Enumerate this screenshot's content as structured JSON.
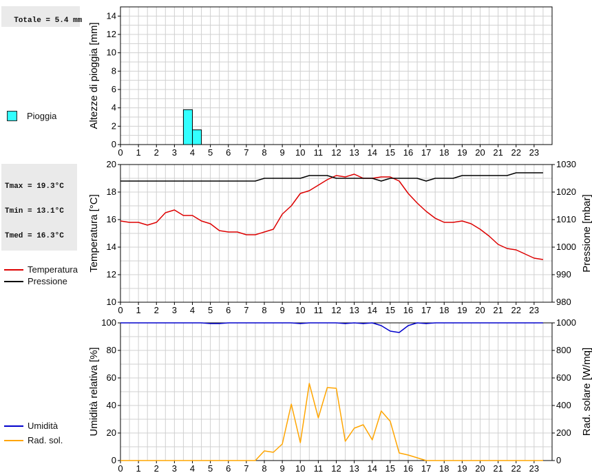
{
  "colors": {
    "rain": "#33ffff",
    "temperature": "#dd0000",
    "pressure": "#000000",
    "humidity": "#0000cc",
    "radiation": "#ffa500",
    "grid": "#d0d0d0"
  },
  "summary": {
    "total_rain": "Totale = 5.4 mm",
    "tmax": "Tmax = 19.3°C",
    "tmin": "Tmin = 13.1°C",
    "tmed": "Tmed = 16.3°C"
  },
  "legend": {
    "rain": "Pioggia",
    "temperature": "Temperatura",
    "pressure": "Pressione",
    "humidity": "Umidità",
    "radiation": "Rad. sol."
  },
  "chart_data": [
    {
      "type": "bar",
      "ylabel": "Altezze di pioggia [mm]",
      "xlim": [
        0,
        24
      ],
      "ylim": [
        0,
        15
      ],
      "yticks": [
        "0",
        "2",
        "4",
        "6",
        "8",
        "10",
        "12",
        "14"
      ],
      "xticks": [
        "0",
        "1",
        "2",
        "3",
        "4",
        "5",
        "6",
        "7",
        "8",
        "9",
        "10",
        "11",
        "12",
        "13",
        "14",
        "15",
        "16",
        "17",
        "18",
        "19",
        "20",
        "21",
        "22",
        "23"
      ],
      "bars": [
        {
          "start": 3.5,
          "end": 4.0,
          "value": 3.8
        },
        {
          "start": 4.0,
          "end": 4.5,
          "value": 1.6
        }
      ]
    },
    {
      "type": "line",
      "ylabel": "Temperatura [°C]",
      "ylabel_right": "Pressione [mbar]",
      "ylim": [
        10,
        20
      ],
      "ylim_right": [
        980,
        1030
      ],
      "yticks": [
        "10",
        "12",
        "14",
        "16",
        "18",
        "20"
      ],
      "yticks_right": [
        "980",
        "990",
        "1000",
        "1010",
        "1020",
        "1030"
      ],
      "xticks": [
        "0",
        "1",
        "2",
        "3",
        "4",
        "5",
        "6",
        "7",
        "8",
        "9",
        "10",
        "11",
        "12",
        "13",
        "14",
        "15",
        "16",
        "17",
        "18",
        "19",
        "20",
        "21",
        "22",
        "23"
      ],
      "series": [
        {
          "name": "Temperatura",
          "axis": "left",
          "x": [
            0,
            0.5,
            1,
            1.5,
            2,
            2.5,
            3,
            3.5,
            4,
            4.5,
            5,
            5.5,
            6,
            6.5,
            7,
            7.5,
            8,
            8.5,
            9,
            9.5,
            10,
            10.5,
            11,
            11.5,
            12,
            12.5,
            13,
            13.5,
            14,
            14.5,
            15,
            15.5,
            16,
            16.5,
            17,
            17.5,
            18,
            18.5,
            19,
            19.5,
            20,
            20.5,
            21,
            21.5,
            22,
            22.5,
            23,
            23.5
          ],
          "values": [
            15.9,
            15.8,
            15.8,
            15.6,
            15.8,
            16.5,
            16.7,
            16.3,
            16.3,
            15.9,
            15.7,
            15.2,
            15.1,
            15.1,
            14.9,
            14.9,
            15.1,
            15.3,
            16.4,
            17.0,
            17.9,
            18.1,
            18.5,
            18.9,
            19.2,
            19.1,
            19.3,
            19.0,
            19.0,
            19.1,
            19.1,
            18.8,
            17.9,
            17.2,
            16.6,
            16.1,
            15.8,
            15.8,
            15.9,
            15.7,
            15.3,
            14.8,
            14.2,
            13.9,
            13.8,
            13.5,
            13.2,
            13.1
          ]
        },
        {
          "name": "Pressione",
          "axis": "right",
          "x": [
            0,
            0.5,
            1,
            1.5,
            2,
            2.5,
            3,
            3.5,
            4,
            4.5,
            5,
            5.5,
            6,
            6.5,
            7,
            7.5,
            8,
            8.5,
            9,
            9.5,
            10,
            10.5,
            11,
            11.5,
            12,
            12.5,
            13,
            13.5,
            14,
            14.5,
            15,
            15.5,
            16,
            16.5,
            17,
            17.5,
            18,
            18.5,
            19,
            19.5,
            20,
            20.5,
            21,
            21.5,
            22,
            22.5,
            23,
            23.5
          ],
          "values": [
            1024,
            1024,
            1024,
            1024,
            1024,
            1024,
            1024,
            1024,
            1024,
            1024,
            1024,
            1024,
            1024,
            1024,
            1024,
            1024,
            1025,
            1025,
            1025,
            1025,
            1025,
            1026,
            1026,
            1026,
            1025,
            1025,
            1025,
            1025,
            1025,
            1024,
            1025,
            1025,
            1025,
            1025,
            1024,
            1025,
            1025,
            1025,
            1026,
            1026,
            1026,
            1026,
            1026,
            1026,
            1027,
            1027,
            1027,
            1027
          ]
        }
      ]
    },
    {
      "type": "line",
      "ylabel": "Umidità relativa [%]",
      "ylabel_right": "Rad. solare [W/mq]",
      "ylim": [
        0,
        100
      ],
      "ylim_right": [
        0,
        1000
      ],
      "yticks": [
        "0",
        "20",
        "40",
        "60",
        "80",
        "100"
      ],
      "yticks_right": [
        "0",
        "200",
        "400",
        "600",
        "800",
        "1000"
      ],
      "xticks": [
        "0",
        "1",
        "2",
        "3",
        "4",
        "5",
        "6",
        "7",
        "8",
        "9",
        "10",
        "11",
        "12",
        "13",
        "14",
        "15",
        "16",
        "17",
        "18",
        "19",
        "20",
        "21",
        "22",
        "23"
      ],
      "series": [
        {
          "name": "Umidità",
          "axis": "left",
          "x": [
            0,
            0.5,
            1,
            1.5,
            2,
            2.5,
            3,
            3.5,
            4,
            4.5,
            5,
            5.5,
            6,
            6.5,
            7,
            7.5,
            8,
            8.5,
            9,
            9.5,
            10,
            10.5,
            11,
            11.5,
            12,
            12.5,
            13,
            13.5,
            14,
            14.5,
            15,
            15.5,
            16,
            16.5,
            17,
            17.5,
            18,
            18.5,
            19,
            19.5,
            20,
            20.5,
            21,
            21.5,
            22,
            22.5,
            23,
            23.5
          ],
          "values": [
            100,
            100,
            100,
            100,
            100,
            100,
            100,
            100,
            100,
            100,
            99.5,
            99.5,
            100,
            100,
            100,
            100,
            100,
            100,
            100,
            100,
            99.5,
            100,
            100,
            100,
            100,
            99.5,
            100,
            99.5,
            100,
            98,
            94,
            93,
            98,
            100,
            99.5,
            100,
            100,
            100,
            100,
            100,
            100,
            100,
            100,
            100,
            100,
            100,
            100,
            100
          ]
        },
        {
          "name": "Rad. sol.",
          "axis": "right",
          "x": [
            0,
            0.5,
            1,
            1.5,
            2,
            2.5,
            3,
            3.5,
            4,
            4.5,
            5,
            5.5,
            6,
            6.5,
            7,
            7.5,
            8,
            8.5,
            9,
            9.5,
            10,
            10.5,
            11,
            11.5,
            12,
            12.5,
            13,
            13.5,
            14,
            14.5,
            15,
            15.5,
            16,
            16.5,
            17,
            17.5,
            18,
            18.5,
            19,
            19.5,
            20,
            20.5,
            21,
            21.5,
            22,
            22.5,
            23,
            23.5
          ],
          "values": [
            0,
            0,
            0,
            0,
            0,
            0,
            0,
            0,
            0,
            0,
            0,
            0,
            0,
            0,
            0,
            0,
            70,
            60,
            120,
            410,
            130,
            560,
            310,
            530,
            525,
            140,
            235,
            260,
            150,
            360,
            285,
            55,
            40,
            20,
            0,
            0,
            0,
            0,
            0,
            0,
            0,
            0,
            0,
            0,
            0,
            0,
            0,
            0
          ]
        }
      ]
    }
  ]
}
